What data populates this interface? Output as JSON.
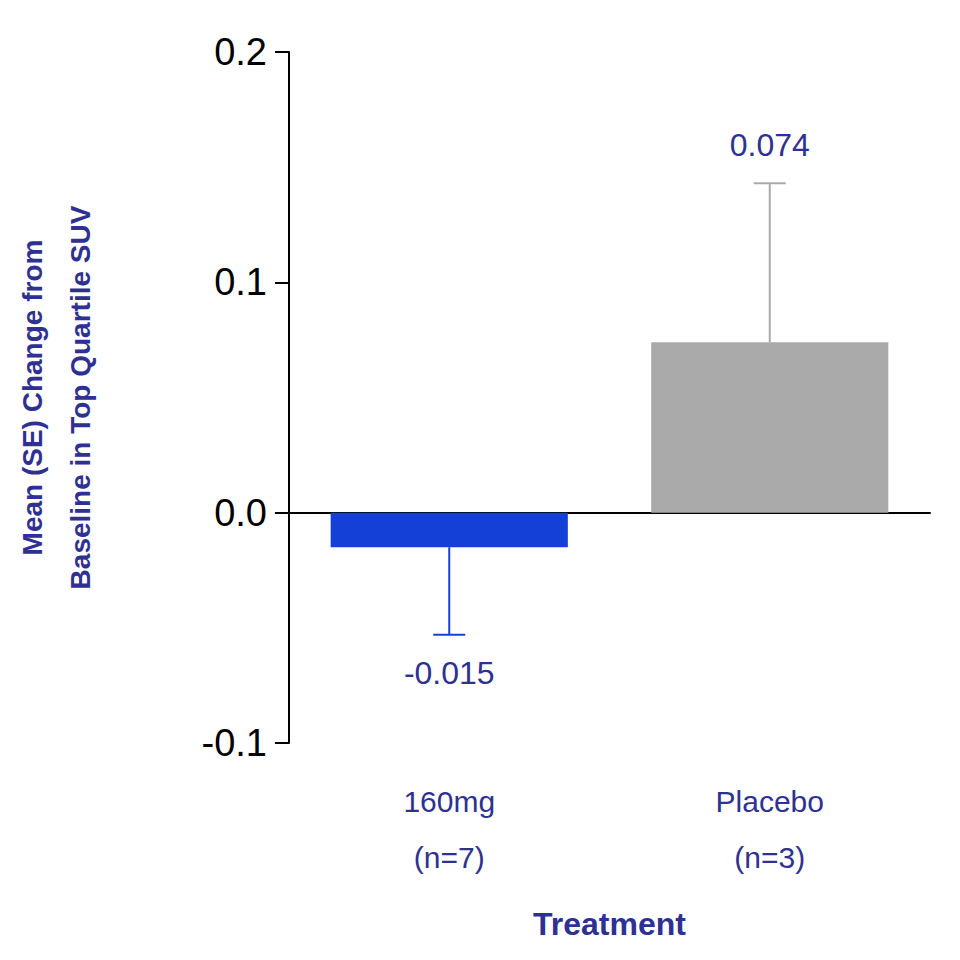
{
  "chart_data": {
    "type": "bar",
    "categories": [
      "160mg\n(n=7)",
      "Placebo\n(n=3)"
    ],
    "values": [
      -0.015,
      0.074
    ],
    "errors": [
      0.038,
      0.069
    ],
    "colors": [
      "#1440d8",
      "#aaaaaa"
    ],
    "y_label": "Mean (SE) Change from\nBaseline in Top Quartile SUV",
    "x_label": "Treatment",
    "ylim": [
      -0.1,
      0.2
    ],
    "yticks": [
      -0.1,
      {
        "value": 0,
        "label": "0.0"
      },
      0.1,
      0.2
    ],
    "grid": false,
    "data_labels": true
  }
}
